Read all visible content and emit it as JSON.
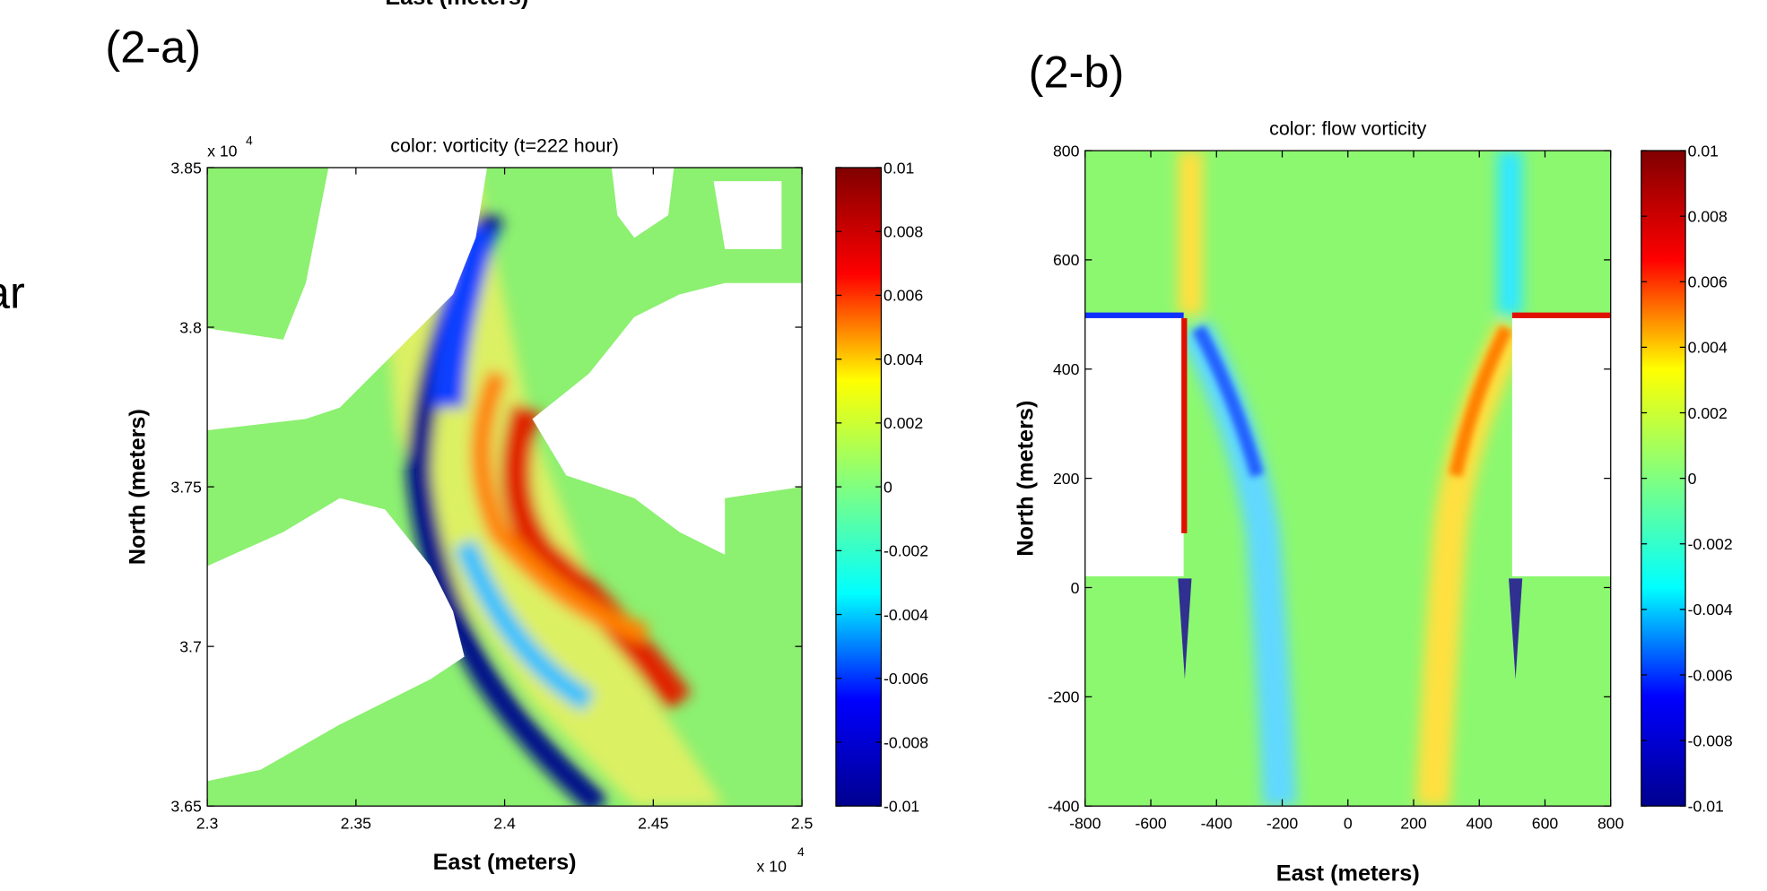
{
  "figure_labels": [
    "(2-a)",
    "(2-b)"
  ],
  "header_fragment": "East (meters)",
  "side_fragment": "ar",
  "chart_data": [
    {
      "type": "heatmap",
      "title": "color: vorticity  (t=222 hour)",
      "xlabel": "East (meters)",
      "ylabel": "North (meters)",
      "xlim": [
        2.3,
        2.5
      ],
      "xticks": [
        2.3,
        2.35,
        2.4,
        2.45,
        2.5
      ],
      "ylim": [
        3.65,
        3.85
      ],
      "yticks": [
        3.65,
        3.7,
        3.75,
        3.8,
        3.85
      ],
      "x_multiplier": {
        "base": "x 10",
        "exponent": "4"
      },
      "y_multiplier": {
        "base": "x 10",
        "exponent": "4"
      },
      "colormap": "jet",
      "clim": [
        -0.01,
        0.01
      ],
      "cticks": [
        -0.01,
        -0.008,
        -0.006,
        -0.004,
        -0.002,
        0,
        0.002,
        0.004,
        0.006,
        0.008,
        0.01
      ]
    },
    {
      "type": "heatmap",
      "title": "color: flow vorticity",
      "xlabel": "East (meters)",
      "ylabel": "North (meters)",
      "xlim": [
        -800,
        800
      ],
      "xticks": [
        -800,
        -600,
        -400,
        -200,
        0,
        200,
        400,
        600,
        800
      ],
      "ylim": [
        -400,
        800
      ],
      "yticks": [
        -400,
        -200,
        0,
        200,
        400,
        600,
        800
      ],
      "colormap": "jet",
      "clim": [
        -0.01,
        0.01
      ],
      "cticks": [
        -0.01,
        -0.008,
        -0.006,
        -0.004,
        -0.002,
        0,
        0.002,
        0.004,
        0.006,
        0.008,
        0.01
      ]
    }
  ]
}
